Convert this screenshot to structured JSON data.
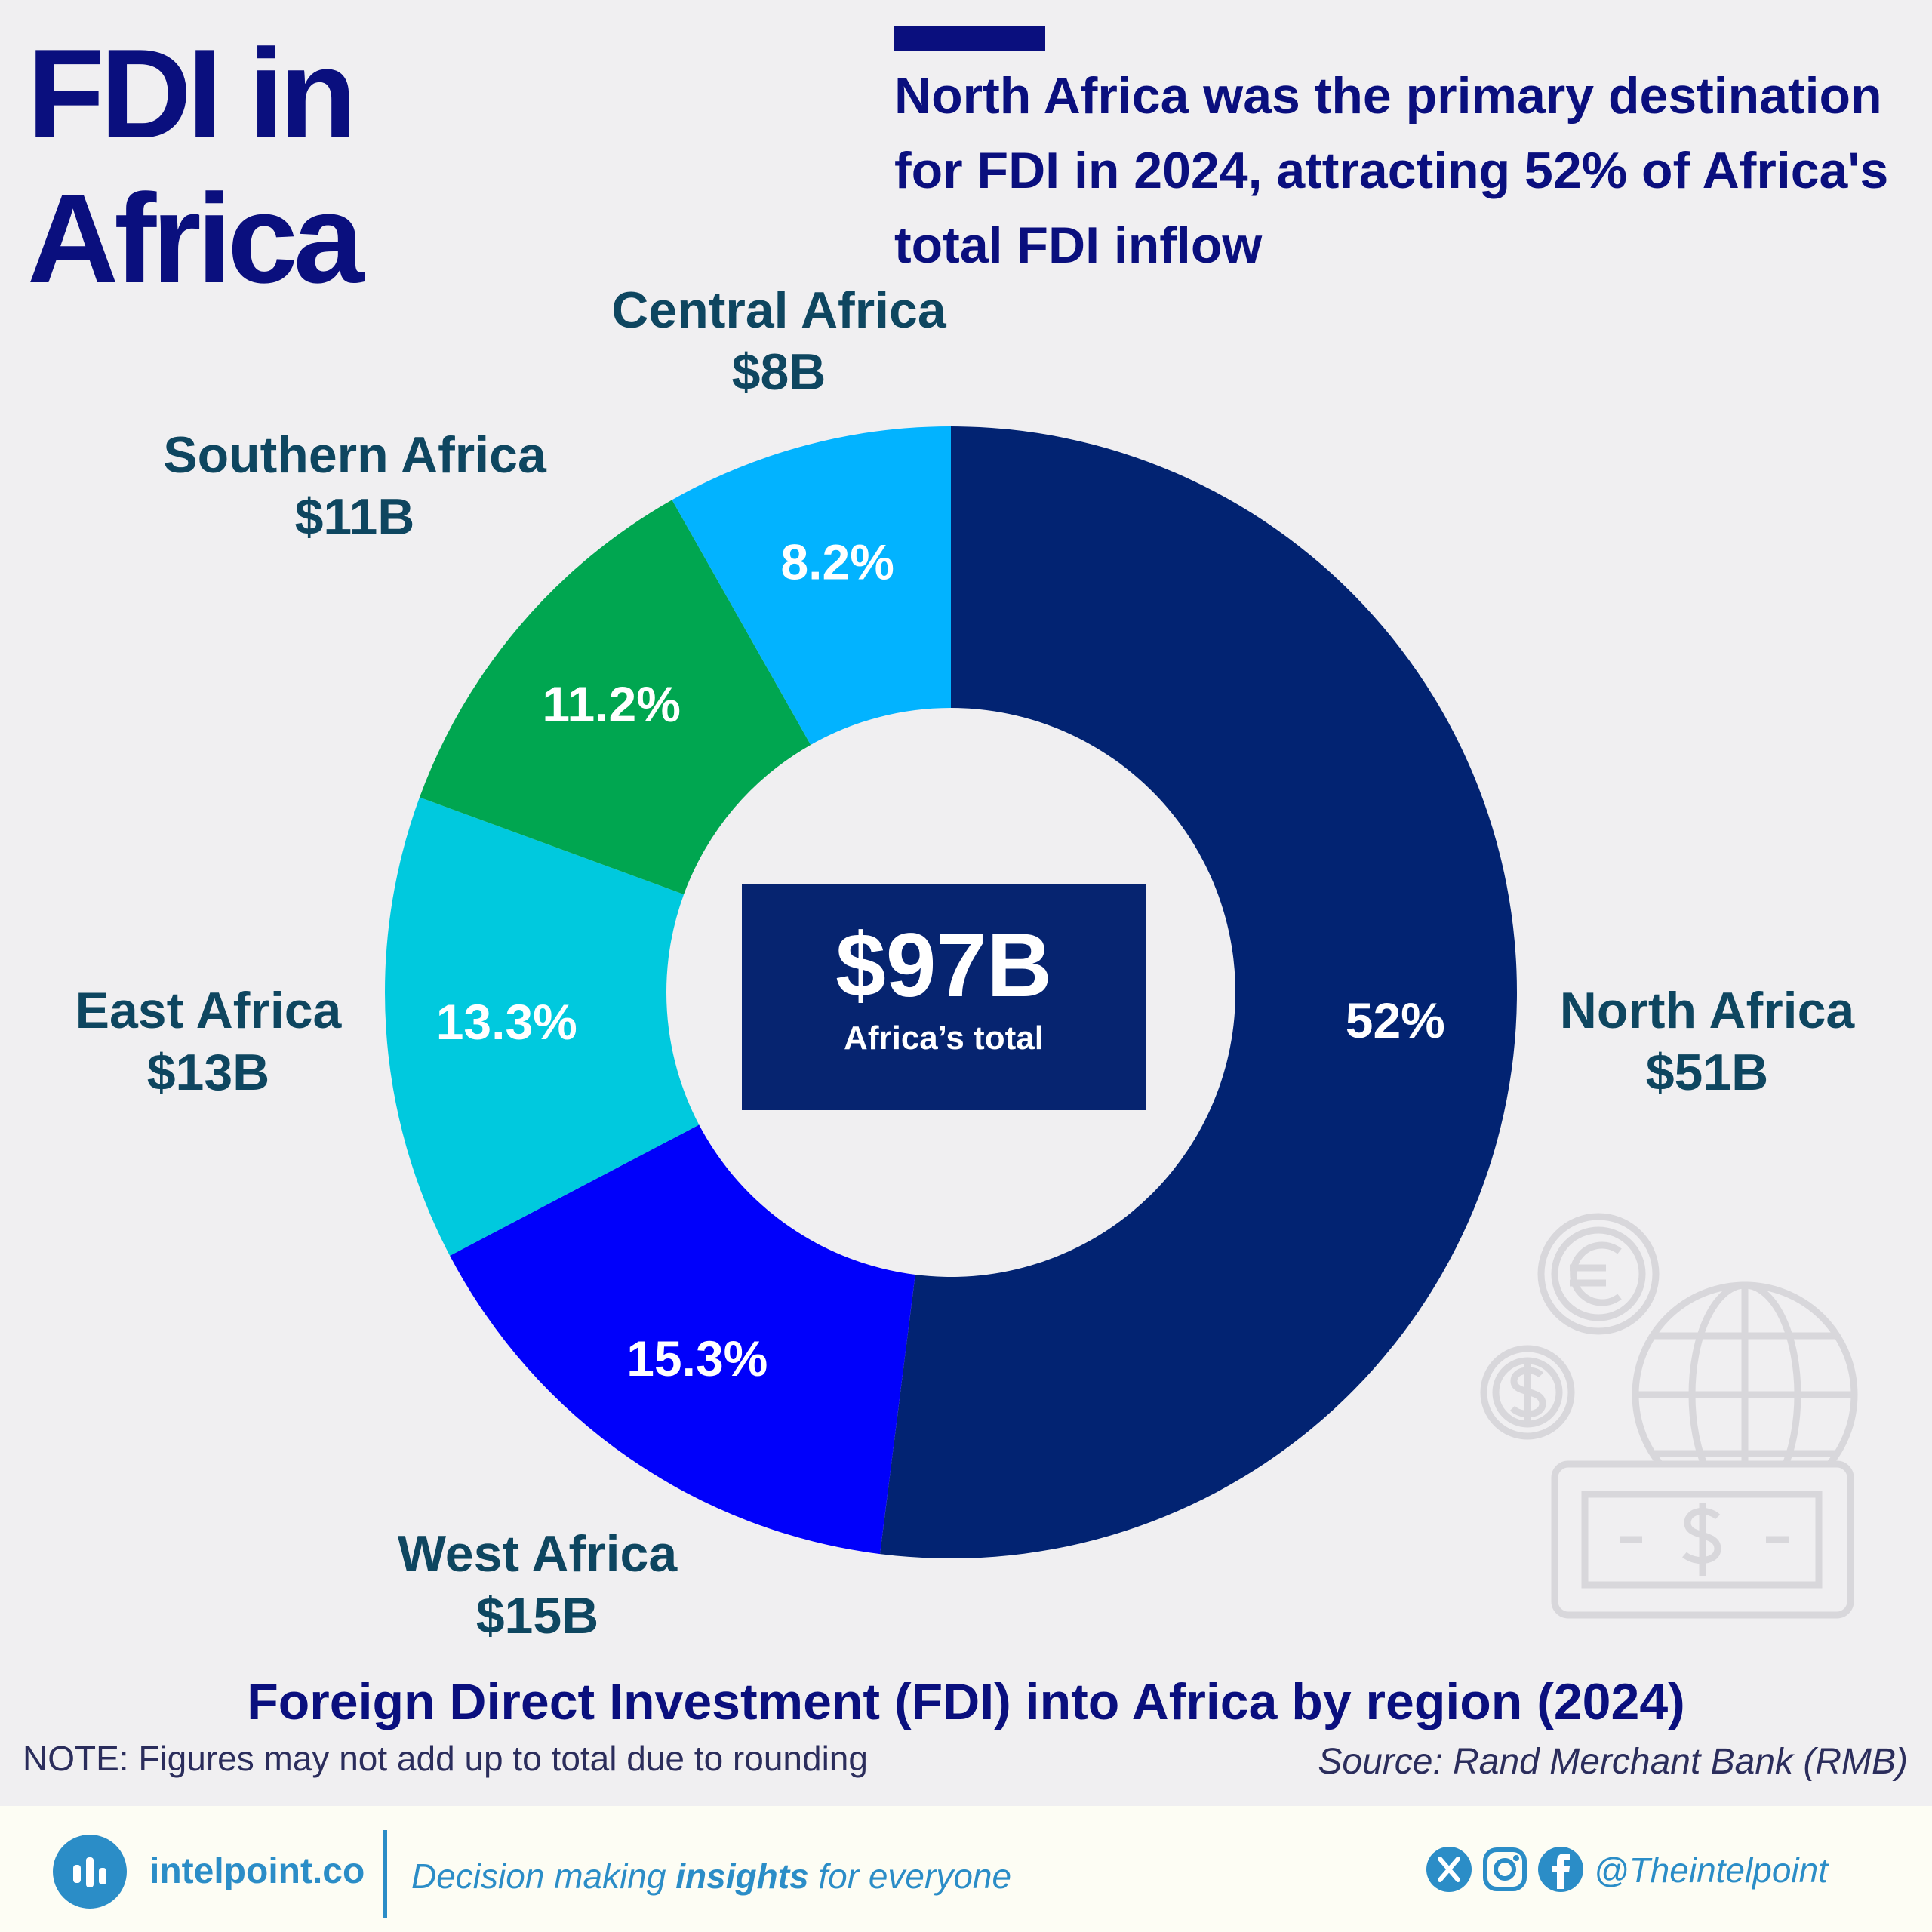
{
  "title": {
    "line1": "FDI in",
    "line2": "Africa"
  },
  "headline": "North Africa was the primary destination for FDI in 2024, attracting 52% of Africa's total FDI inflow",
  "chart_data": {
    "type": "pie",
    "variant": "donut",
    "title": "Foreign Direct Investment (FDI) into Africa by region (2024)",
    "unit": "USD billions",
    "slices": [
      {
        "name": "North Africa",
        "value": 51,
        "value_label": "$51B",
        "percent": 52,
        "percent_label": "52%",
        "color": "#022372"
      },
      {
        "name": "West Africa",
        "value": 15,
        "value_label": "$15B",
        "percent": 15.3,
        "percent_label": "15.3%",
        "color": "#0000fb"
      },
      {
        "name": "East Africa",
        "value": 13,
        "value_label": "$13B",
        "percent": 13.3,
        "percent_label": "13.3%",
        "color": "#00c9de"
      },
      {
        "name": "Southern Africa",
        "value": 11,
        "value_label": "$11B",
        "percent": 11.2,
        "percent_label": "11.2%",
        "color": "#00a650"
      },
      {
        "name": "Central Africa",
        "value": 8,
        "value_label": "$8B",
        "percent": 8.2,
        "percent_label": "8.2%",
        "color": "#02b3ff"
      }
    ],
    "total": {
      "value": 97,
      "value_label": "$97B",
      "caption": "Africa’s total"
    }
  },
  "note": "NOTE: Figures may not add up to total due to rounding",
  "source": "Source: Rand Merchant Bank (RMB)",
  "footer": {
    "brand": "intelpoint.co",
    "tagline_pre": "Decision making ",
    "tagline_bold": "insights",
    "tagline_post": " for everyone",
    "handle": "@Theintelpoint",
    "icons": [
      "x-icon",
      "instagram-icon",
      "facebook-icon"
    ]
  },
  "decoration_icons": [
    "euro-coin-icon",
    "dollar-coin-icon",
    "globe-icon",
    "banknote-icon"
  ]
}
